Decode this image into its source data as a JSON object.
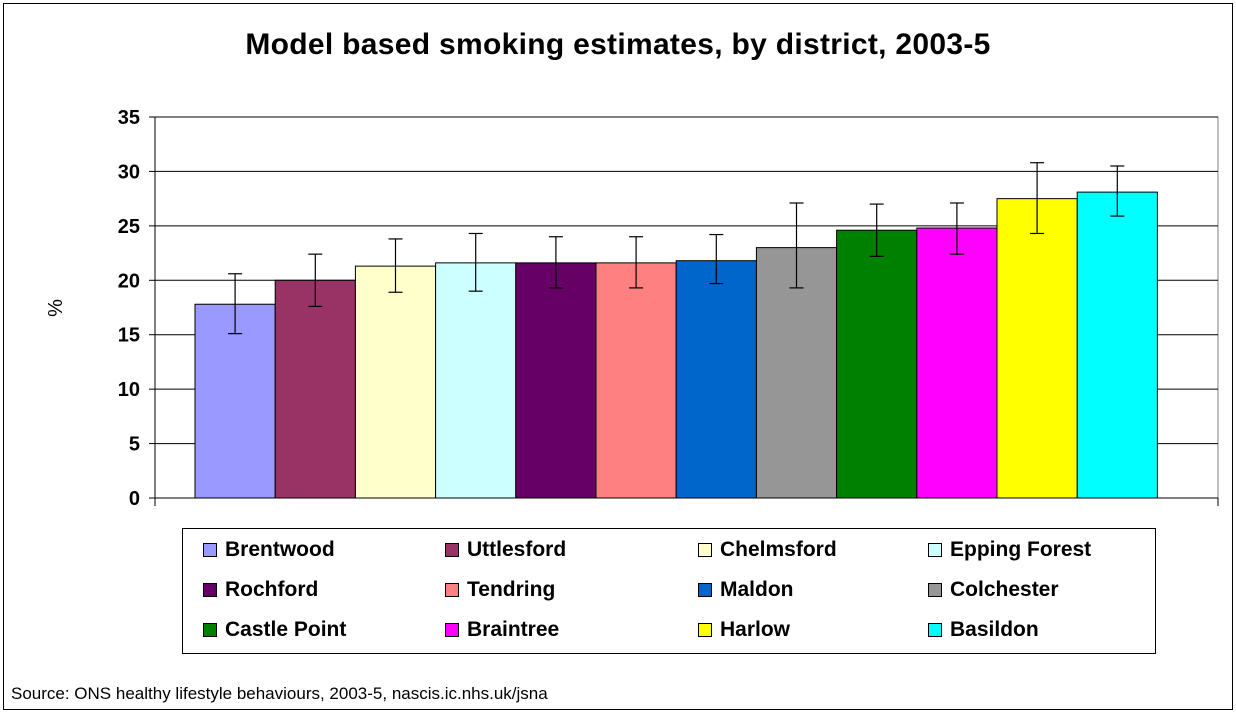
{
  "chart_data": {
    "type": "bar",
    "title": "Model based smoking estimates, by district, 2003-5",
    "ylabel": "%",
    "ylim": [
      0,
      35
    ],
    "yticks": [
      0,
      5,
      10,
      15,
      20,
      25,
      30,
      35
    ],
    "grid": true,
    "legend_placement": "bottom",
    "series": [
      {
        "name": "Brentwood",
        "value": 17.8,
        "error": [
          15.1,
          20.6
        ],
        "color": "#9999FF"
      },
      {
        "name": "Uttlesford",
        "value": 20.0,
        "error": [
          17.6,
          22.4
        ],
        "color": "#993366"
      },
      {
        "name": "Chelmsford",
        "value": 21.3,
        "error": [
          18.9,
          23.8
        ],
        "color": "#FFFFCC"
      },
      {
        "name": "Epping Forest",
        "value": 21.6,
        "error": [
          19.0,
          24.3
        ],
        "color": "#CCFFFF"
      },
      {
        "name": "Rochford",
        "value": 21.6,
        "error": [
          19.3,
          24.0
        ],
        "color": "#660066"
      },
      {
        "name": "Tendring",
        "value": 21.6,
        "error": [
          19.3,
          24.0
        ],
        "color": "#FF8080"
      },
      {
        "name": "Maldon",
        "value": 21.8,
        "error": [
          19.7,
          24.2
        ],
        "color": "#0066CC"
      },
      {
        "name": "Colchester",
        "value": 23.0,
        "error": [
          19.3,
          27.1
        ],
        "color": "#969696"
      },
      {
        "name": "Castle Point",
        "value": 24.6,
        "error": [
          22.2,
          27.0
        ],
        "color": "#008000"
      },
      {
        "name": "Braintree",
        "value": 24.8,
        "error": [
          22.4,
          27.1
        ],
        "color": "#FF00FF"
      },
      {
        "name": "Harlow",
        "value": 27.5,
        "error": [
          24.3,
          30.8
        ],
        "color": "#FFFF00"
      },
      {
        "name": "Basildon",
        "value": 28.1,
        "error": [
          25.9,
          30.5
        ],
        "color": "#00FFFF"
      }
    ]
  },
  "source_note": "Source: ONS healthy lifestyle behaviours, 2003-5, nascis.ic.nhs.uk/jsna"
}
